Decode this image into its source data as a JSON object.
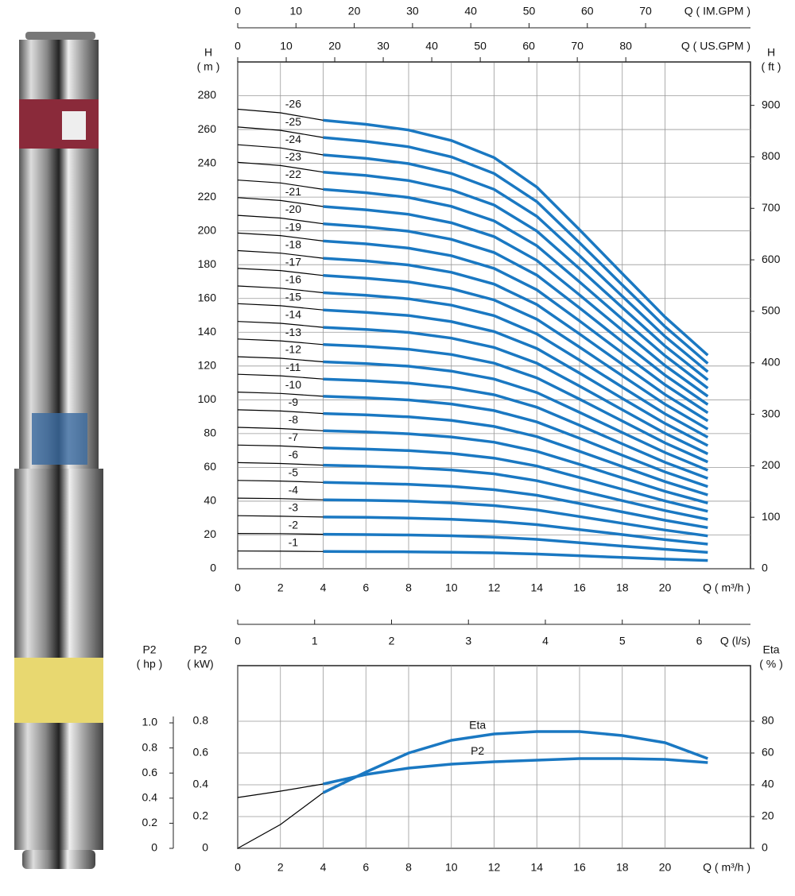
{
  "chart_data": [
    {
      "type": "line",
      "x": [
        0,
        2,
        4,
        6,
        8,
        10,
        12,
        14,
        16,
        18,
        20,
        22
      ],
      "x_label": "Q ( m³/h )",
      "y_label": [
        "H",
        "( m )"
      ],
      "y2_label": [
        "H",
        "( ft )"
      ],
      "xlim": [
        0,
        24
      ],
      "xticks": [
        0,
        2,
        4,
        6,
        8,
        10,
        12,
        14,
        16,
        18,
        20
      ],
      "ylim": [
        0,
        300
      ],
      "yticks": [
        0,
        20,
        40,
        60,
        80,
        100,
        120,
        140,
        160,
        180,
        200,
        220,
        240,
        260,
        280
      ],
      "y2lim": [
        0,
        984.3
      ],
      "y2ticks": [
        0,
        100,
        200,
        300,
        400,
        500,
        600,
        700,
        800,
        900
      ],
      "grid": true,
      "operating_range": [
        4,
        22
      ],
      "extension_color": "#000000",
      "extra_x_axes": [
        {
          "label": "Q ( IM.GPM )",
          "lim": [
            0,
            88.0
          ],
          "ticks": [
            0,
            10,
            20,
            30,
            40,
            50,
            60,
            70
          ]
        },
        {
          "label": "Q ( US.GPM )",
          "lim": [
            0,
            105.7
          ],
          "ticks": [
            0,
            10,
            20,
            30,
            40,
            50,
            60,
            70,
            80
          ]
        },
        {
          "label": "Q (l/s)",
          "lim": [
            0,
            6.667
          ],
          "ticks": [
            0,
            1,
            2,
            3,
            4,
            5,
            6
          ]
        }
      ],
      "series": [
        {
          "name": "-1",
          "color": "#1a78c2",
          "values": [
            10.5,
            10.4,
            10.2,
            10.1,
            10.0,
            9.8,
            9.4,
            8.7,
            7.7,
            6.7,
            5.7,
            4.9
          ]
        },
        {
          "name": "-2",
          "color": "#1a78c2",
          "values": [
            20.9,
            20.8,
            20.4,
            20.2,
            20.0,
            19.5,
            18.7,
            17.4,
            15.4,
            13.4,
            11.5,
            9.7
          ]
        },
        {
          "name": "-3",
          "color": "#1a78c2",
          "values": [
            31.4,
            31.1,
            30.6,
            30.4,
            30.0,
            29.3,
            28.1,
            26.1,
            23.2,
            20.2,
            17.2,
            14.6
          ]
        },
        {
          "name": "-4",
          "color": "#1a78c2",
          "values": [
            41.8,
            41.5,
            40.8,
            40.5,
            40.0,
            39.0,
            37.4,
            34.8,
            30.9,
            26.9,
            22.9,
            19.4
          ]
        },
        {
          "name": "-5",
          "color": "#1a78c2",
          "values": [
            52.3,
            51.9,
            51.1,
            50.6,
            50.0,
            48.8,
            46.8,
            43.5,
            38.6,
            33.6,
            28.7,
            24.3
          ]
        },
        {
          "name": "-6",
          "color": "#1a78c2",
          "values": [
            62.8,
            62.3,
            61.3,
            60.7,
            59.9,
            58.5,
            56.2,
            52.1,
            46.3,
            40.3,
            34.4,
            29.2
          ]
        },
        {
          "name": "-7",
          "color": "#1a78c2",
          "values": [
            73.2,
            72.7,
            71.5,
            70.8,
            69.9,
            68.3,
            65.5,
            60.8,
            54.0,
            47.0,
            40.1,
            34.0
          ]
        },
        {
          "name": "-8",
          "color": "#1a78c2",
          "values": [
            83.7,
            83.0,
            81.7,
            81.0,
            79.9,
            78.0,
            74.9,
            69.5,
            61.8,
            53.8,
            45.8,
            38.9
          ]
        },
        {
          "name": "-9",
          "color": "#1a78c2",
          "values": [
            94.1,
            93.4,
            91.9,
            91.1,
            89.9,
            87.8,
            84.2,
            78.2,
            69.5,
            60.5,
            51.6,
            43.7
          ]
        },
        {
          "name": "-10",
          "color": "#1a78c2",
          "values": [
            104.6,
            103.8,
            102.1,
            101.2,
            99.9,
            97.5,
            93.6,
            86.9,
            77.2,
            67.2,
            57.3,
            48.6
          ]
        },
        {
          "name": "-11",
          "color": "#1a78c2",
          "values": [
            115.1,
            114.2,
            112.3,
            111.3,
            109.9,
            107.3,
            103.0,
            95.6,
            84.9,
            73.9,
            63.0,
            53.5
          ]
        },
        {
          "name": "-12",
          "color": "#1a78c2",
          "values": [
            125.5,
            124.6,
            122.5,
            121.4,
            119.9,
            117.0,
            112.3,
            104.3,
            92.6,
            80.6,
            68.8,
            58.3
          ]
        },
        {
          "name": "-13",
          "color": "#1a78c2",
          "values": [
            136.0,
            134.9,
            132.7,
            131.6,
            129.9,
            126.8,
            121.7,
            113.0,
            100.4,
            87.4,
            74.5,
            63.2
          ]
        },
        {
          "name": "-14",
          "color": "#1a78c2",
          "values": [
            146.4,
            145.3,
            142.9,
            141.7,
            139.9,
            136.5,
            131.0,
            121.7,
            108.1,
            94.1,
            80.2,
            68.0
          ]
        },
        {
          "name": "-15",
          "color": "#1a78c2",
          "values": [
            156.9,
            155.7,
            153.2,
            151.8,
            149.9,
            146.3,
            140.4,
            130.4,
            115.8,
            100.8,
            86.0,
            72.9
          ]
        },
        {
          "name": "-16",
          "color": "#1a78c2",
          "values": [
            167.4,
            166.1,
            163.4,
            161.9,
            159.8,
            156.0,
            149.8,
            139.0,
            123.5,
            107.5,
            91.7,
            77.8
          ]
        },
        {
          "name": "-17",
          "color": "#1a78c2",
          "values": [
            177.8,
            176.5,
            173.6,
            172.0,
            169.8,
            165.8,
            159.1,
            147.7,
            131.2,
            114.2,
            97.4,
            82.6
          ]
        },
        {
          "name": "-18",
          "color": "#1a78c2",
          "values": [
            188.3,
            186.8,
            183.8,
            182.2,
            179.8,
            175.5,
            168.5,
            156.4,
            139.0,
            121.0,
            103.1,
            87.5
          ]
        },
        {
          "name": "-19",
          "color": "#1a78c2",
          "values": [
            198.7,
            197.2,
            194.0,
            192.3,
            189.8,
            185.3,
            177.8,
            165.1,
            146.7,
            127.7,
            108.9,
            92.3
          ]
        },
        {
          "name": "-20",
          "color": "#1a78c2",
          "values": [
            209.2,
            207.6,
            204.2,
            202.4,
            199.8,
            195.0,
            187.2,
            173.8,
            154.4,
            134.4,
            114.6,
            97.2
          ]
        },
        {
          "name": "-21",
          "color": "#1a78c2",
          "values": [
            219.7,
            218.0,
            214.4,
            212.5,
            209.8,
            204.8,
            196.6,
            182.5,
            162.1,
            141.1,
            120.3,
            102.1
          ]
        },
        {
          "name": "-22",
          "color": "#1a78c2",
          "values": [
            230.1,
            228.4,
            224.6,
            222.6,
            219.8,
            214.5,
            205.9,
            191.2,
            169.8,
            147.8,
            126.1,
            106.9
          ]
        },
        {
          "name": "-23",
          "color": "#1a78c2",
          "values": [
            240.6,
            238.7,
            234.8,
            232.8,
            229.8,
            224.3,
            215.3,
            199.9,
            177.6,
            154.6,
            131.8,
            111.8
          ]
        },
        {
          "name": "-24",
          "color": "#1a78c2",
          "values": [
            251.0,
            249.1,
            245.0,
            242.9,
            239.8,
            234.0,
            224.6,
            208.6,
            185.3,
            161.3,
            137.5,
            116.6
          ]
        },
        {
          "name": "-25",
          "color": "#1a78c2",
          "values": [
            261.5,
            259.5,
            255.3,
            253.0,
            249.8,
            243.8,
            234.0,
            217.3,
            193.0,
            168.0,
            143.3,
            121.5
          ]
        },
        {
          "name": "-26",
          "color": "#1a78c2",
          "values": [
            272.0,
            269.9,
            265.5,
            263.1,
            259.7,
            253.5,
            243.4,
            225.9,
            200.7,
            174.7,
            149.0,
            126.4
          ]
        }
      ]
    },
    {
      "type": "line",
      "x": [
        0,
        2,
        4,
        6,
        8,
        10,
        12,
        14,
        16,
        18,
        20,
        22
      ],
      "x_label": "Q ( m³/h )",
      "y_label": [
        "P2",
        "( kW)"
      ],
      "y2_label": [
        "Eta",
        "( % )"
      ],
      "xlim": [
        0,
        24
      ],
      "xticks": [
        0,
        2,
        4,
        6,
        8,
        10,
        12,
        14,
        16,
        18,
        20
      ],
      "ylim": [
        0,
        1.15
      ],
      "yticks": [
        0,
        0.2,
        0.4,
        0.6,
        0.8
      ],
      "y2lim": [
        0,
        115
      ],
      "y2ticks": [
        0,
        20,
        40,
        60,
        80
      ],
      "grid": true,
      "operating_range": [
        4,
        22
      ],
      "extension_color": "#000000",
      "hp_axis": {
        "label": [
          "P2",
          "( hp )"
        ],
        "lim": [
          0,
          1.456
        ],
        "ticks": [
          0,
          0.2,
          0.4,
          0.6,
          0.8,
          {
            "value": 1,
            "label": "1.0"
          }
        ]
      },
      "series": [
        {
          "name": "Eta",
          "color": "#1a78c2",
          "axis": "y2",
          "values": [
            0,
            15,
            35,
            48,
            60,
            68,
            72,
            73.5,
            73.5,
            71,
            66.5,
            56.5
          ]
        },
        {
          "name": "P2",
          "color": "#1a78c2",
          "values": [
            0.32,
            0.36,
            0.405,
            0.465,
            0.505,
            0.53,
            0.545,
            0.555,
            0.565,
            0.565,
            0.56,
            0.54
          ]
        }
      ]
    }
  ]
}
